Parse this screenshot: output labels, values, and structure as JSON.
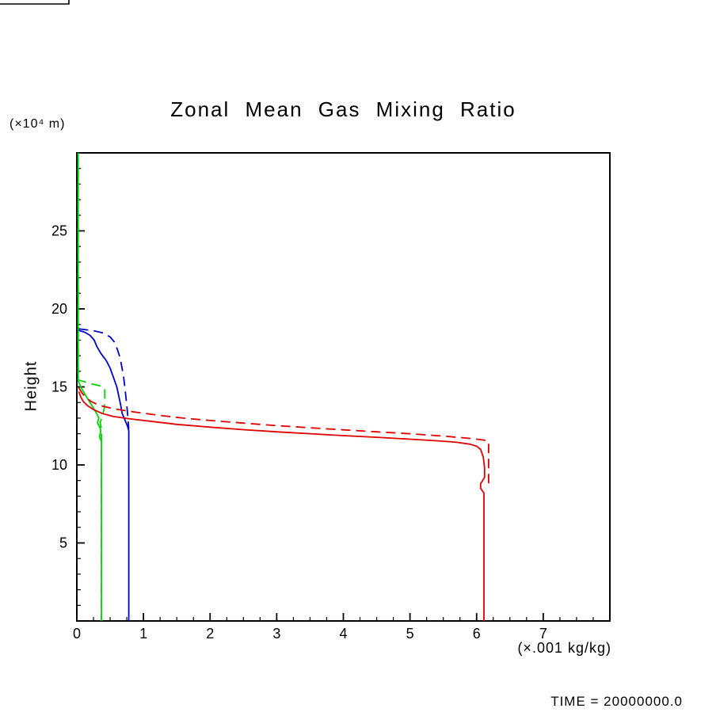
{
  "time_label": "TIME = 20000000.0",
  "chart_data": {
    "type": "line",
    "title": "Zonal Mean Gas Mixing Ratio",
    "xlabel": "(×.001 kg/kg)",
    "ylabel": "Height",
    "y_axis_unit": "(×10⁴ m)",
    "xlim": [
      0,
      8
    ],
    "ylim": [
      0,
      30
    ],
    "x_ticks": [
      0,
      1,
      2,
      3,
      4,
      5,
      6,
      7
    ],
    "x_tick_labels": [
      "0",
      "1",
      "2",
      "3",
      "4",
      "5",
      "6",
      "7"
    ],
    "y_ticks": [
      5,
      10,
      15,
      20,
      25
    ],
    "y_tick_labels": [
      "5",
      "10",
      "15",
      "20",
      "25"
    ],
    "x_minor_step": 0.25,
    "y_minor_step": 1,
    "grid": false,
    "legend": false,
    "frame_color": "#000000",
    "series": [
      {
        "name": "green-dashed",
        "color": "#00d400",
        "dashed": true,
        "points": [
          [
            0.02,
            30.0
          ],
          [
            0.02,
            15.45
          ],
          [
            0.22,
            15.2
          ],
          [
            0.36,
            15.05
          ],
          [
            0.42,
            14.9
          ],
          [
            0.42,
            14.2
          ],
          [
            0.41,
            13.6
          ],
          [
            0.38,
            13.1
          ],
          [
            0.35,
            12.7
          ],
          [
            0.37,
            12.35
          ],
          [
            0.37,
            0.0
          ]
        ]
      },
      {
        "name": "green-solid",
        "color": "#00d400",
        "dashed": false,
        "points": [
          [
            0.02,
            30.0
          ],
          [
            0.02,
            15.4
          ],
          [
            0.06,
            15.0
          ],
          [
            0.1,
            14.7
          ],
          [
            0.14,
            14.4
          ],
          [
            0.19,
            14.05
          ],
          [
            0.24,
            13.7
          ],
          [
            0.29,
            13.35
          ],
          [
            0.33,
            13.0
          ],
          [
            0.31,
            12.7
          ],
          [
            0.34,
            12.45
          ],
          [
            0.36,
            12.2
          ],
          [
            0.34,
            11.8
          ],
          [
            0.37,
            11.5
          ],
          [
            0.37,
            0.0
          ]
        ]
      },
      {
        "name": "blue-dashed",
        "color": "#0000cd",
        "dashed": true,
        "points": [
          [
            0.03,
            18.72
          ],
          [
            0.25,
            18.6
          ],
          [
            0.4,
            18.45
          ],
          [
            0.5,
            18.2
          ],
          [
            0.56,
            17.9
          ],
          [
            0.6,
            17.5
          ],
          [
            0.64,
            17.0
          ],
          [
            0.67,
            16.4
          ],
          [
            0.7,
            15.7
          ],
          [
            0.72,
            15.0
          ],
          [
            0.74,
            14.2
          ],
          [
            0.76,
            13.4
          ],
          [
            0.77,
            12.8
          ],
          [
            0.78,
            12.3
          ]
        ]
      },
      {
        "name": "blue-solid",
        "color": "#0000cd",
        "dashed": false,
        "points": [
          [
            0.03,
            18.62
          ],
          [
            0.12,
            18.5
          ],
          [
            0.2,
            18.3
          ],
          [
            0.26,
            18.0
          ],
          [
            0.3,
            17.6
          ],
          [
            0.36,
            17.15
          ],
          [
            0.44,
            16.7
          ],
          [
            0.5,
            16.2
          ],
          [
            0.55,
            15.6
          ],
          [
            0.6,
            15.0
          ],
          [
            0.63,
            14.4
          ],
          [
            0.66,
            13.8
          ],
          [
            0.68,
            13.3
          ],
          [
            0.72,
            12.9
          ],
          [
            0.76,
            12.5
          ],
          [
            0.78,
            12.2
          ],
          [
            0.78,
            0.0
          ]
        ]
      },
      {
        "name": "red-dashed",
        "color": "#e10000",
        "dashed": true,
        "points": [
          [
            0.03,
            14.95
          ],
          [
            0.08,
            14.6
          ],
          [
            0.14,
            14.3
          ],
          [
            0.22,
            14.05
          ],
          [
            0.35,
            13.8
          ],
          [
            0.55,
            13.6
          ],
          [
            0.85,
            13.4
          ],
          [
            1.2,
            13.2
          ],
          [
            1.6,
            13.0
          ],
          [
            2.0,
            12.85
          ],
          [
            2.5,
            12.68
          ],
          [
            3.0,
            12.52
          ],
          [
            3.5,
            12.38
          ],
          [
            4.0,
            12.25
          ],
          [
            4.5,
            12.12
          ],
          [
            5.0,
            12.0
          ],
          [
            5.5,
            11.85
          ],
          [
            5.9,
            11.7
          ],
          [
            6.1,
            11.6
          ],
          [
            6.18,
            11.5
          ],
          [
            6.18,
            8.6
          ]
        ]
      },
      {
        "name": "red-solid",
        "color": "#e10000",
        "dashed": false,
        "points": [
          [
            0.03,
            14.7
          ],
          [
            0.06,
            14.35
          ],
          [
            0.1,
            14.05
          ],
          [
            0.16,
            13.8
          ],
          [
            0.25,
            13.55
          ],
          [
            0.38,
            13.3
          ],
          [
            0.55,
            13.1
          ],
          [
            0.8,
            12.95
          ],
          [
            1.1,
            12.8
          ],
          [
            1.5,
            12.6
          ],
          [
            2.0,
            12.42
          ],
          [
            2.5,
            12.26
          ],
          [
            3.0,
            12.12
          ],
          [
            3.5,
            12.0
          ],
          [
            4.0,
            11.88
          ],
          [
            4.5,
            11.77
          ],
          [
            5.0,
            11.65
          ],
          [
            5.4,
            11.55
          ],
          [
            5.7,
            11.45
          ],
          [
            5.9,
            11.33
          ],
          [
            6.0,
            11.2
          ],
          [
            6.06,
            11.0
          ],
          [
            6.1,
            10.5
          ],
          [
            6.12,
            9.8
          ],
          [
            6.12,
            9.2
          ],
          [
            6.06,
            8.8
          ],
          [
            6.06,
            8.5
          ],
          [
            6.11,
            8.2
          ],
          [
            6.11,
            0.0
          ]
        ]
      }
    ]
  }
}
